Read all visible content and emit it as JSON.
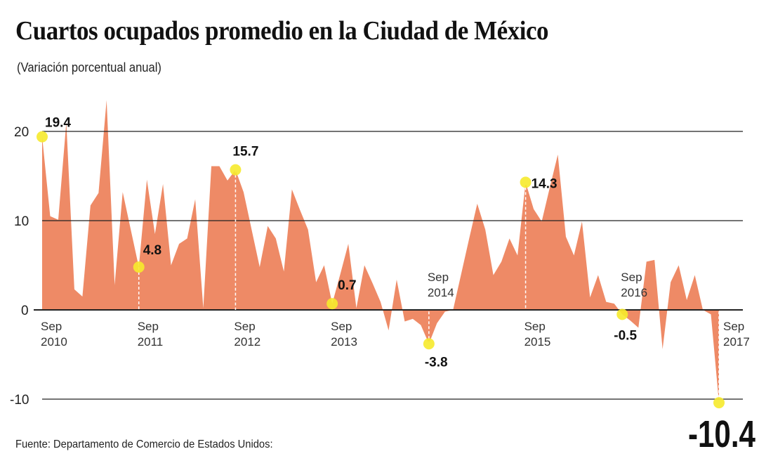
{
  "chart_data": {
    "type": "area",
    "title": "Cuartos ocupados promedio en la Ciudad de México",
    "subtitle": "(Variación porcentual anual)",
    "source": "Fuente: Departamento de Comercio de Estados Unidos:",
    "start": "2010-09",
    "frequency": "monthly",
    "values": [
      19.4,
      10.5,
      10.1,
      21.0,
      2.3,
      1.5,
      11.7,
      13.1,
      23.5,
      2.8,
      13.2,
      9.0,
      4.8,
      14.6,
      8.5,
      14.1,
      5.0,
      7.4,
      8.0,
      12.4,
      0.2,
      16.1,
      16.1,
      14.5,
      15.7,
      13.2,
      9.0,
      4.8,
      9.4,
      8.0,
      4.3,
      13.5,
      11.2,
      9.0,
      3.1,
      5.0,
      0.7,
      4.0,
      7.4,
      0.2,
      5.0,
      3.0,
      0.9,
      -2.3,
      3.4,
      -1.3,
      -1.0,
      -1.7,
      -3.8,
      -1.5,
      -0.2,
      0.0,
      4.0,
      8.0,
      11.9,
      9.0,
      3.9,
      5.4,
      8.0,
      6.1,
      14.3,
      11.3,
      9.9,
      13.7,
      17.4,
      8.2,
      6.1,
      9.9,
      1.4,
      3.9,
      0.9,
      0.7,
      -0.5,
      -1.2,
      -2.0,
      5.4,
      5.6,
      -4.4,
      3.1,
      5.0,
      1.1,
      3.9,
      0.0,
      -0.5,
      -10.4
    ],
    "ylim": [
      -10,
      24
    ],
    "yticks": [
      {
        "v": 20,
        "label": "20"
      },
      {
        "v": 10,
        "label": "10"
      },
      {
        "v": 0,
        "label": "0"
      },
      {
        "v": -10,
        "label": "-10"
      }
    ],
    "xticks": [
      {
        "i": 0,
        "label": [
          "Sep",
          "2010"
        ],
        "pos": "below"
      },
      {
        "i": 12,
        "label": [
          "Sep",
          "2011"
        ],
        "pos": "below"
      },
      {
        "i": 24,
        "label": [
          "Sep",
          "2012"
        ],
        "pos": "below"
      },
      {
        "i": 36,
        "label": [
          "Sep",
          "2013"
        ],
        "pos": "below"
      },
      {
        "i": 48,
        "label": [
          "Sep",
          "2014"
        ],
        "pos": "above"
      },
      {
        "i": 60,
        "label": [
          "Sep",
          "2015"
        ],
        "pos": "below"
      },
      {
        "i": 72,
        "label": [
          "Sep",
          "2016"
        ],
        "pos": "above"
      },
      {
        "i": 84,
        "label": [
          "Sep",
          "2017"
        ],
        "pos": "right"
      }
    ],
    "annotations": [
      {
        "i": 0,
        "label": "19.4"
      },
      {
        "i": 12,
        "label": "4.8"
      },
      {
        "i": 24,
        "label": "15.7"
      },
      {
        "i": 36,
        "label": "0.7"
      },
      {
        "i": 48,
        "label": "-3.8"
      },
      {
        "i": 60,
        "label": "14.3"
      },
      {
        "i": 72,
        "label": "-0.5"
      },
      {
        "i": 84,
        "label": "-10.4"
      }
    ],
    "grid": true,
    "colors": {
      "fill": "#ee8a66",
      "marker": "#f6ea2c",
      "grid": "#222222"
    }
  }
}
